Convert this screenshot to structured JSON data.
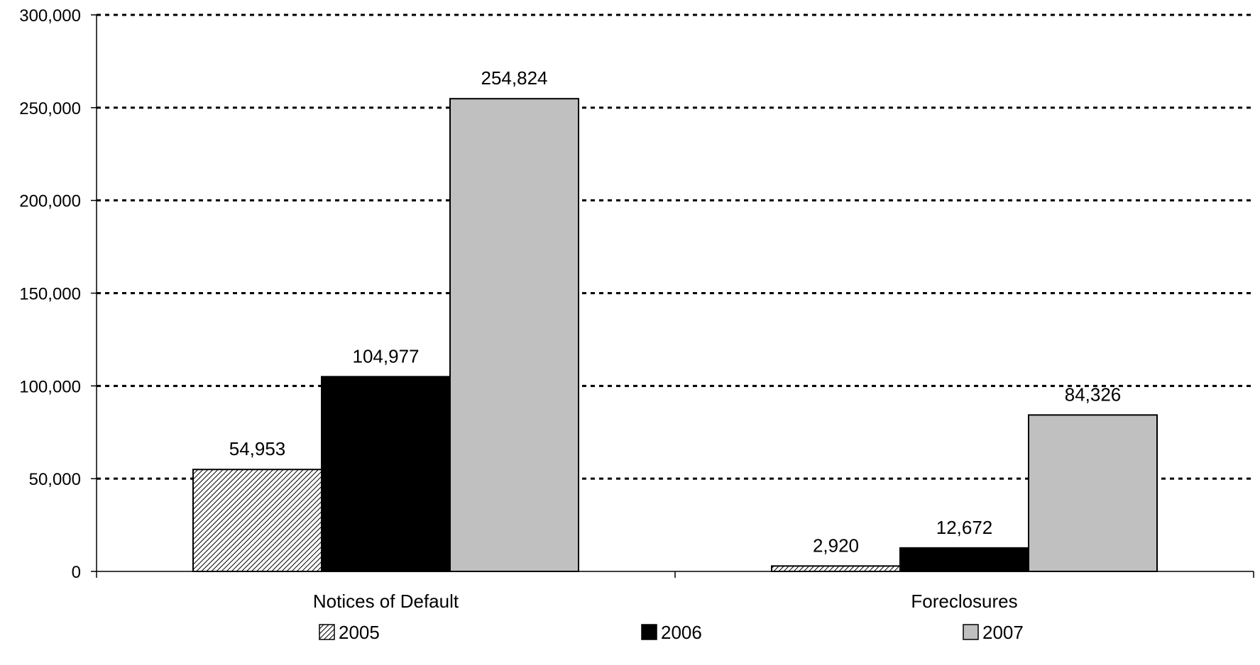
{
  "chart_data": {
    "type": "bar",
    "categories": [
      "Notices of Default",
      "Foreclosures"
    ],
    "series": [
      {
        "name": "2005",
        "values": [
          54953,
          2920
        ],
        "labels": [
          "54,953",
          "2,920"
        ],
        "fill": "hatched",
        "color": "#ffffff"
      },
      {
        "name": "2006",
        "values": [
          104977,
          12672
        ],
        "labels": [
          "104,977",
          "12,672"
        ],
        "fill": "solid",
        "color": "#000000"
      },
      {
        "name": "2007",
        "values": [
          254824,
          84326
        ],
        "labels": [
          "254,824",
          "84,326"
        ],
        "fill": "solid",
        "color": "#c0c0c0"
      }
    ],
    "title": "",
    "xlabel": "",
    "ylabel": "",
    "ylim": [
      0,
      300000
    ],
    "yticks": [
      0,
      50000,
      100000,
      150000,
      200000,
      250000,
      300000
    ],
    "ytick_labels": [
      "0",
      "50,000",
      "100,000",
      "150,000",
      "200,000",
      "250,000",
      "300,000"
    ],
    "grid": "dotted horizontal",
    "legend": "bottom"
  }
}
